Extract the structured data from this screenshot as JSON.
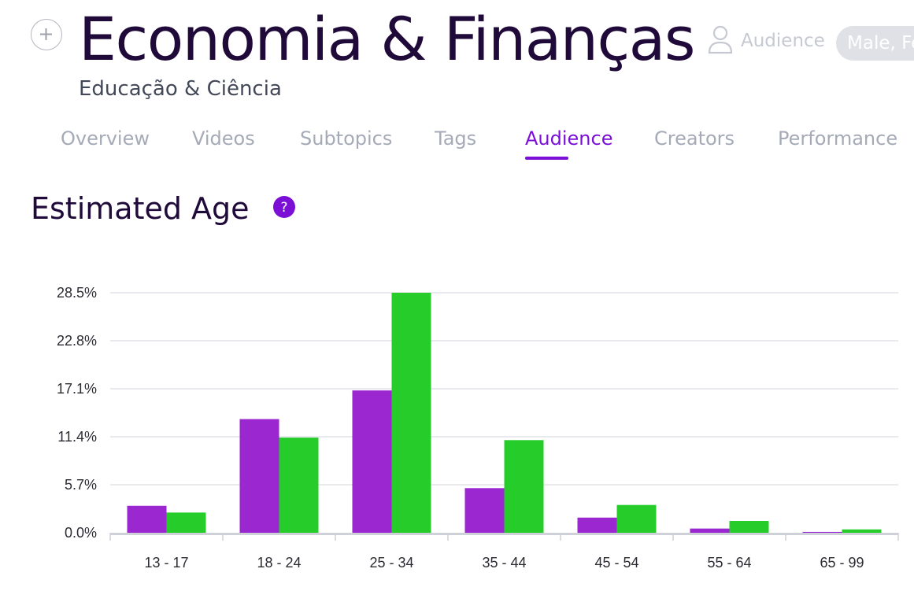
{
  "header": {
    "title": "Economia & Finanças",
    "subtitle": "Educação & Ciência",
    "add_icon": "plus-icon",
    "audience_filter": {
      "icon": "user-icon",
      "label": "Audience",
      "value": "Male, Fe"
    }
  },
  "tabs": [
    {
      "label": "Overview",
      "active": false
    },
    {
      "label": "Videos",
      "active": false
    },
    {
      "label": "Subtopics",
      "active": false
    },
    {
      "label": "Tags",
      "active": false
    },
    {
      "label": "Audience",
      "active": true
    },
    {
      "label": "Creators",
      "active": false
    },
    {
      "label": "Performance",
      "active": false
    }
  ],
  "section": {
    "title": "Estimated Age",
    "help_icon": "question-icon",
    "help_glyph": "?"
  },
  "colors": {
    "accent": "#7b0fd6",
    "title": "#1f0a3a",
    "series_purple": "#9b27d0",
    "series_green": "#26cd2a"
  },
  "chart_data": {
    "type": "bar",
    "categories": [
      "13 - 17",
      "18 - 24",
      "25 - 34",
      "35 - 44",
      "45 - 54",
      "55 - 64",
      "65 - 99"
    ],
    "y_ticks": [
      "0.0%",
      "5.7%",
      "11.4%",
      "17.1%",
      "22.8%",
      "28.5%"
    ],
    "ylim": [
      0,
      28.5
    ],
    "grid": true,
    "series": [
      {
        "color": "#9b27d0",
        "values": [
          3.2,
          13.5,
          16.9,
          5.3,
          1.8,
          0.5,
          0.1
        ]
      },
      {
        "color": "#26cd2a",
        "values": [
          2.4,
          11.3,
          28.5,
          11.0,
          3.3,
          1.4,
          0.4
        ]
      }
    ]
  }
}
